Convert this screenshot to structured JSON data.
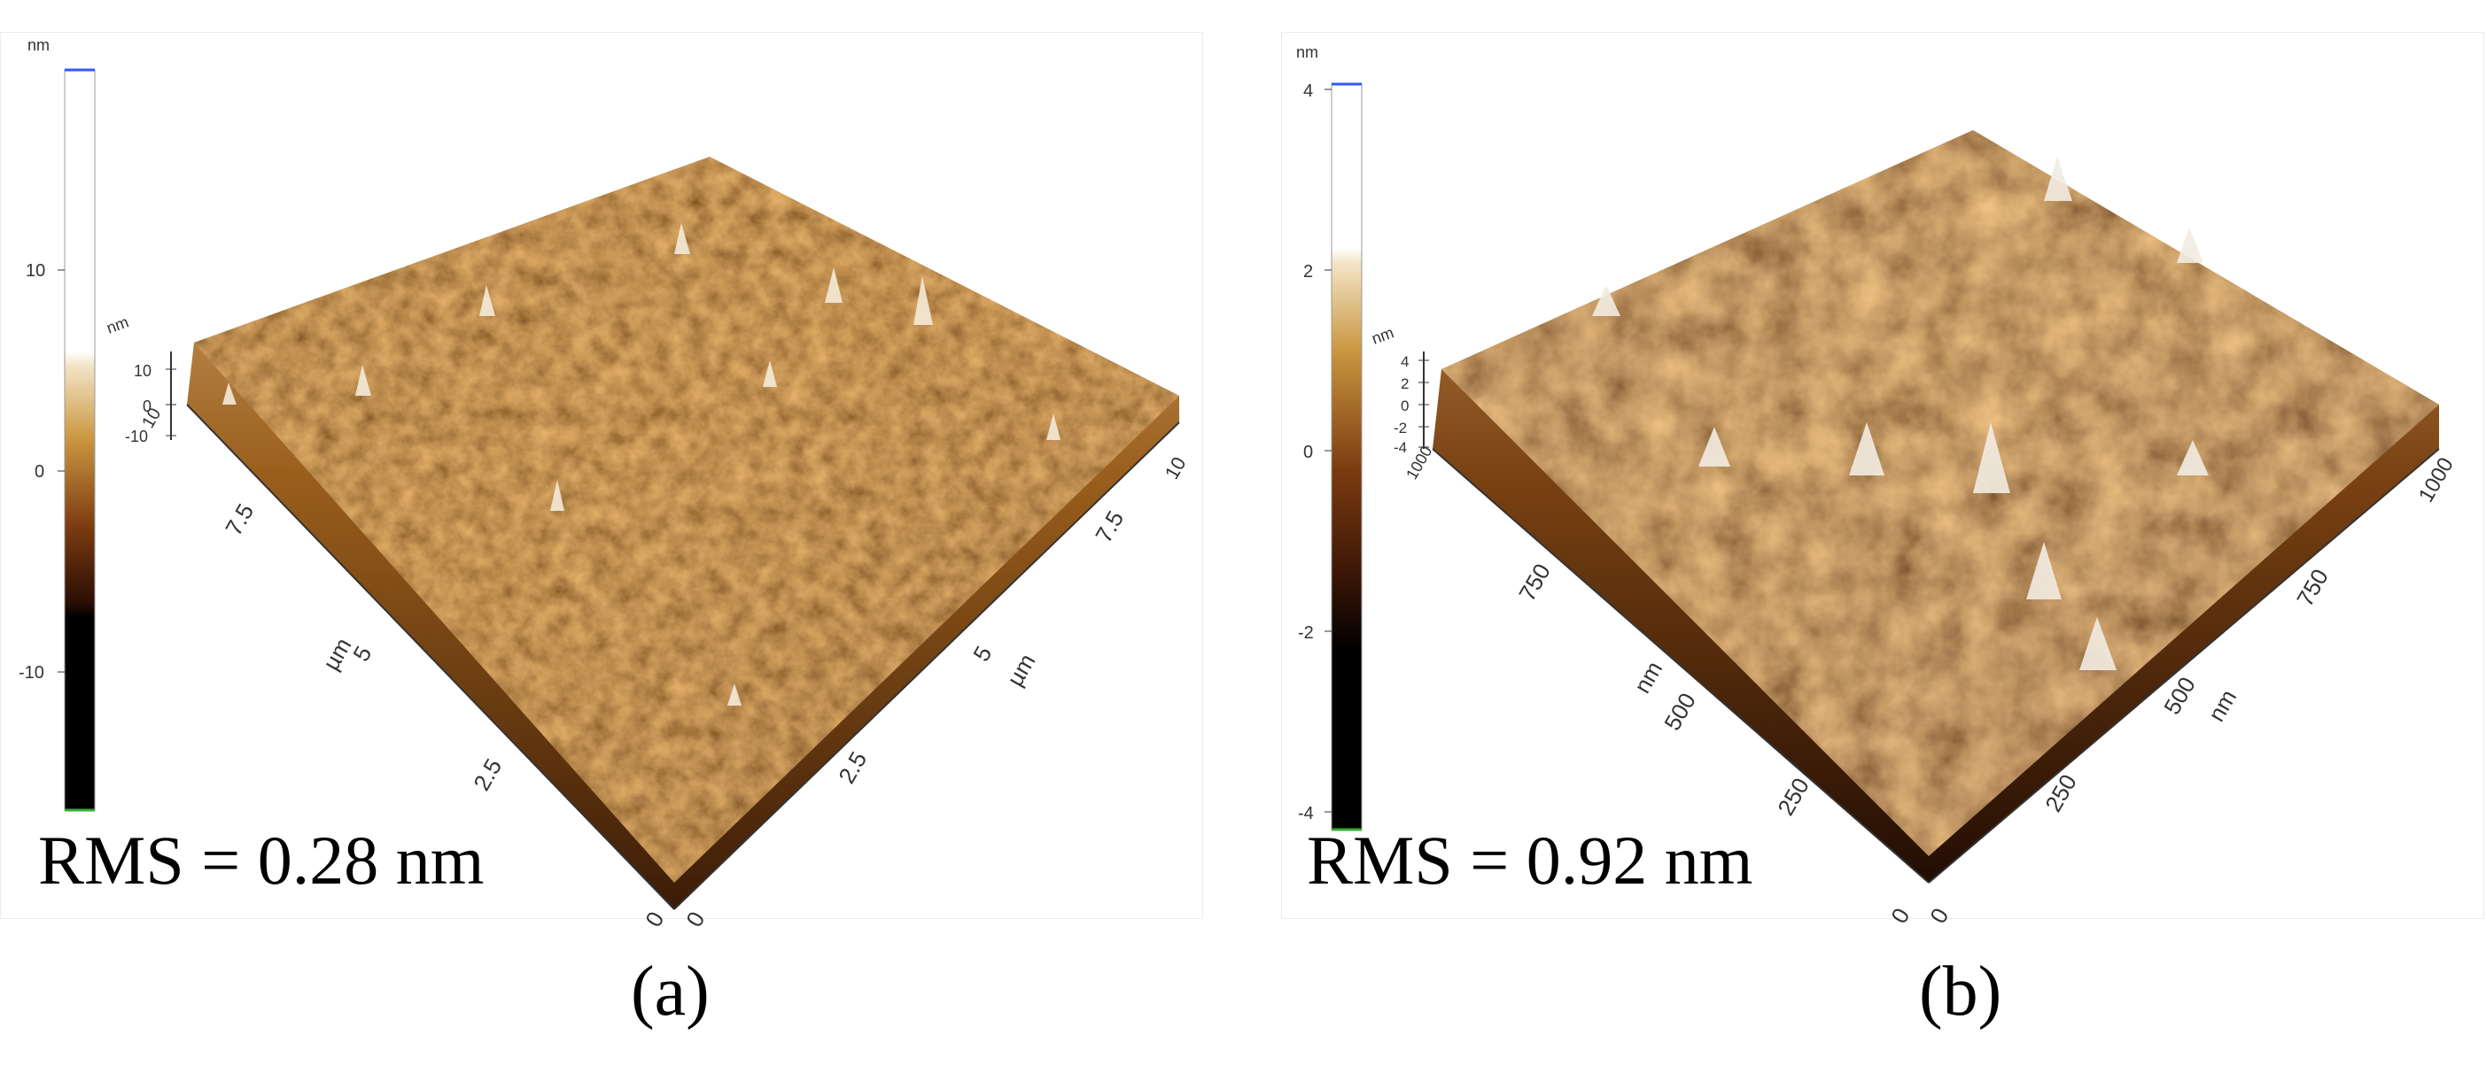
{
  "panels": [
    {
      "id": "a",
      "caption": "(a)",
      "rms_text": "RMS = 0.28 nm",
      "colorbar": {
        "unit": "nm",
        "ticks": [
          "10",
          "0",
          "-10"
        ]
      },
      "z_axis": {
        "unit": "nm",
        "ticks": [
          "10",
          "0",
          "-10"
        ]
      },
      "left_axis": {
        "unit": "µm",
        "ticks": [
          "0",
          "2.5",
          "5",
          "7.5",
          "10"
        ]
      },
      "right_axis": {
        "unit": "µm",
        "ticks": [
          "0",
          "2.5",
          "5",
          "7.5",
          "10"
        ]
      },
      "colors": {
        "low": "#000000",
        "mid": "#7a3a10",
        "high": "#ffffff"
      }
    },
    {
      "id": "b",
      "caption": "(b)",
      "rms_text": "RMS = 0.92 nm",
      "colorbar": {
        "unit": "nm",
        "ticks": [
          "4",
          "2",
          "0",
          "-2",
          "-4"
        ]
      },
      "z_axis": {
        "unit": "nm",
        "ticks": [
          "4",
          "2",
          "0",
          "-2",
          "-4"
        ]
      },
      "left_axis": {
        "unit": "nm",
        "ticks": [
          "0",
          "250",
          "500",
          "750",
          "1000"
        ]
      },
      "right_axis": {
        "unit": "nm",
        "ticks": [
          "0",
          "250",
          "500",
          "750",
          "1000"
        ]
      },
      "colors": {
        "low": "#000000",
        "mid": "#7a3a10",
        "high": "#ffffff"
      }
    }
  ]
}
